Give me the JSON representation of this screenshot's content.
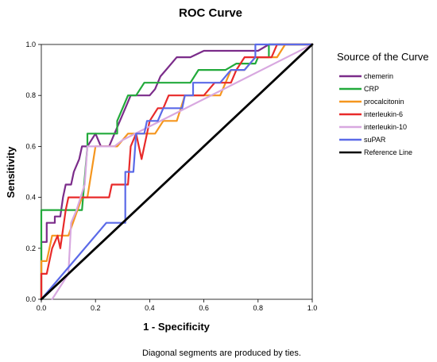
{
  "chart_data": {
    "type": "line",
    "title": "ROC Curve",
    "xlabel": "1 - Specificity",
    "ylabel": "Sensitivity",
    "xlim": [
      0.0,
      1.0
    ],
    "ylim": [
      0.0,
      1.0
    ],
    "xticks": [
      "0.0",
      "0.2",
      "0.4",
      "0.6",
      "0.8",
      "1.0"
    ],
    "yticks": [
      "0.0",
      "0.2",
      "0.4",
      "0.6",
      "0.8",
      "1.0"
    ],
    "legend_title": "Source of the Curve",
    "legend_position": "right",
    "footnote": "Diagonal segments are produced by ties.",
    "series": [
      {
        "name": "chemerin",
        "color": "#7B2C8A",
        "points": [
          [
            0,
            0
          ],
          [
            0,
            0.225
          ],
          [
            0.02,
            0.225
          ],
          [
            0.02,
            0.3
          ],
          [
            0.05,
            0.3
          ],
          [
            0.05,
            0.325
          ],
          [
            0.07,
            0.325
          ],
          [
            0.08,
            0.4
          ],
          [
            0.09,
            0.45
          ],
          [
            0.11,
            0.45
          ],
          [
            0.12,
            0.5
          ],
          [
            0.14,
            0.55
          ],
          [
            0.15,
            0.6
          ],
          [
            0.17,
            0.6
          ],
          [
            0.2,
            0.65
          ],
          [
            0.22,
            0.6
          ],
          [
            0.25,
            0.6
          ],
          [
            0.27,
            0.65
          ],
          [
            0.29,
            0.7
          ],
          [
            0.3,
            0.725
          ],
          [
            0.31,
            0.75
          ],
          [
            0.33,
            0.8
          ],
          [
            0.4,
            0.8
          ],
          [
            0.42,
            0.825
          ],
          [
            0.44,
            0.875
          ],
          [
            0.46,
            0.9
          ],
          [
            0.5,
            0.95
          ],
          [
            0.55,
            0.95
          ],
          [
            0.6,
            0.975
          ],
          [
            0.8,
            0.975
          ],
          [
            0.84,
            1.0
          ],
          [
            1.0,
            1.0
          ]
        ]
      },
      {
        "name": "CRP",
        "color": "#22AA3B",
        "points": [
          [
            0,
            0
          ],
          [
            0,
            0.35
          ],
          [
            0.15,
            0.35
          ],
          [
            0.17,
            0.6
          ],
          [
            0.17,
            0.65
          ],
          [
            0.28,
            0.65
          ],
          [
            0.28,
            0.7
          ],
          [
            0.3,
            0.75
          ],
          [
            0.32,
            0.8
          ],
          [
            0.35,
            0.8
          ],
          [
            0.38,
            0.85
          ],
          [
            0.55,
            0.85
          ],
          [
            0.58,
            0.9
          ],
          [
            0.68,
            0.9
          ],
          [
            0.72,
            0.925
          ],
          [
            0.79,
            0.925
          ],
          [
            0.8,
            0.95
          ],
          [
            0.84,
            0.95
          ],
          [
            0.84,
            1.0
          ],
          [
            1.0,
            1.0
          ]
        ]
      },
      {
        "name": "procalcitonin",
        "color": "#F5961E",
        "points": [
          [
            0,
            0
          ],
          [
            0,
            0.15
          ],
          [
            0.02,
            0.15
          ],
          [
            0.04,
            0.25
          ],
          [
            0.1,
            0.25
          ],
          [
            0.15,
            0.4
          ],
          [
            0.17,
            0.4
          ],
          [
            0.2,
            0.6
          ],
          [
            0.28,
            0.6
          ],
          [
            0.32,
            0.65
          ],
          [
            0.42,
            0.65
          ],
          [
            0.45,
            0.7
          ],
          [
            0.5,
            0.7
          ],
          [
            0.53,
            0.8
          ],
          [
            0.66,
            0.8
          ],
          [
            0.7,
            0.9
          ],
          [
            0.75,
            0.9
          ],
          [
            0.79,
            0.95
          ],
          [
            0.87,
            0.95
          ],
          [
            0.9,
            1.0
          ],
          [
            1.0,
            1.0
          ]
        ]
      },
      {
        "name": "interleukin-6",
        "color": "#E82A2A",
        "points": [
          [
            0,
            0
          ],
          [
            0,
            0.1
          ],
          [
            0.02,
            0.1
          ],
          [
            0.04,
            0.2
          ],
          [
            0.06,
            0.25
          ],
          [
            0.07,
            0.2
          ],
          [
            0.09,
            0.35
          ],
          [
            0.1,
            0.4
          ],
          [
            0.25,
            0.4
          ],
          [
            0.26,
            0.45
          ],
          [
            0.32,
            0.45
          ],
          [
            0.33,
            0.6
          ],
          [
            0.35,
            0.65
          ],
          [
            0.37,
            0.55
          ],
          [
            0.39,
            0.65
          ],
          [
            0.4,
            0.7
          ],
          [
            0.43,
            0.75
          ],
          [
            0.45,
            0.75
          ],
          [
            0.47,
            0.8
          ],
          [
            0.6,
            0.8
          ],
          [
            0.64,
            0.85
          ],
          [
            0.7,
            0.85
          ],
          [
            0.72,
            0.9
          ],
          [
            0.75,
            0.95
          ],
          [
            0.85,
            0.95
          ],
          [
            0.87,
            1.0
          ],
          [
            1.0,
            1.0
          ]
        ]
      },
      {
        "name": "interleukin-10",
        "color": "#D8A8E0",
        "points": [
          [
            0.04,
            0
          ],
          [
            0.07,
            0.05
          ],
          [
            0.1,
            0.1
          ],
          [
            0.11,
            0.3
          ],
          [
            0.13,
            0.35
          ],
          [
            0.16,
            0.45
          ],
          [
            0.17,
            0.6
          ],
          [
            0.27,
            0.6
          ],
          [
            0.3,
            0.625
          ],
          [
            1.0,
            1.0
          ]
        ]
      },
      {
        "name": "suPAR",
        "color": "#5B6AE8",
        "points": [
          [
            0,
            0
          ],
          [
            0.24,
            0.3
          ],
          [
            0.31,
            0.3
          ],
          [
            0.31,
            0.5
          ],
          [
            0.34,
            0.5
          ],
          [
            0.35,
            0.65
          ],
          [
            0.38,
            0.65
          ],
          [
            0.39,
            0.7
          ],
          [
            0.43,
            0.7
          ],
          [
            0.45,
            0.75
          ],
          [
            0.52,
            0.75
          ],
          [
            0.53,
            0.8
          ],
          [
            0.56,
            0.8
          ],
          [
            0.56,
            0.85
          ],
          [
            0.66,
            0.85
          ],
          [
            0.7,
            0.9
          ],
          [
            0.75,
            0.9
          ],
          [
            0.79,
            0.95
          ],
          [
            0.79,
            1.0
          ],
          [
            1.0,
            1.0
          ]
        ]
      },
      {
        "name": "Reference Line",
        "color": "#000000",
        "points": [
          [
            0,
            0
          ],
          [
            1,
            1
          ]
        ]
      }
    ]
  }
}
